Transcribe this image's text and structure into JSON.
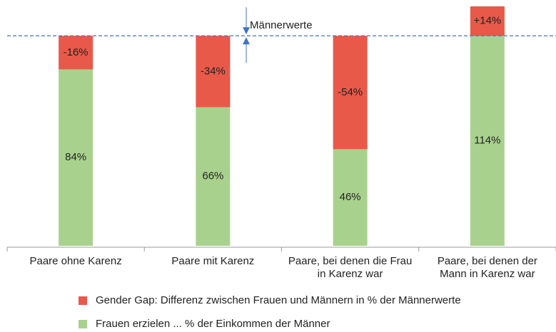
{
  "chart_data": {
    "type": "bar",
    "annotation": "Männerwerte",
    "reference_line": 100,
    "categories": [
      "Paare ohne Karenz",
      "Paare mit Karenz",
      "Paare, bei denen die Frau in Karenz war",
      "Paare, bei denen der Mann in Karenz war"
    ],
    "series": [
      {
        "name": "Frauen erzielen ... % der Einkommen der Männer",
        "color": "#a9d18e",
        "values": [
          84,
          66,
          46,
          114
        ],
        "value_labels": [
          "84%",
          "66%",
          "46%",
          "114%"
        ]
      },
      {
        "name": "Gender Gap: Differenz zwischen Frauen und Männern in % der Männerwerte",
        "color": "#e8594a",
        "values": [
          -16,
          -34,
          -54,
          14
        ],
        "value_labels": [
          "-16%",
          "-34%",
          "-54%",
          "+14%"
        ]
      }
    ],
    "ylim": [
      0,
      115
    ]
  }
}
